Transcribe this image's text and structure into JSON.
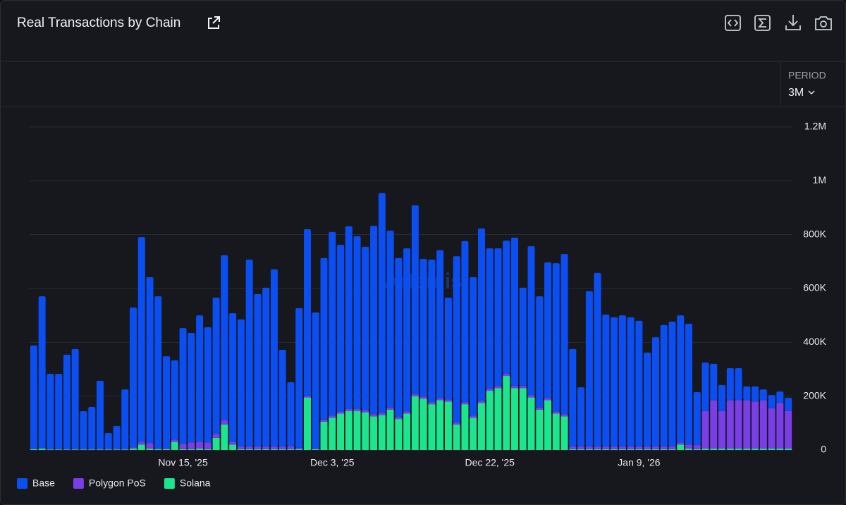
{
  "period_label": "PERIOD",
  "period": "3M",
  "chart_data": {
    "type": "bar",
    "stacked": true,
    "title": "Real Transactions by Chain",
    "watermark": "Artemis",
    "categories": [
      null,
      null,
      null,
      null,
      null,
      null,
      null,
      null,
      null,
      null,
      null,
      null,
      null,
      null,
      null,
      null,
      null,
      null,
      "Nov 15, '25",
      null,
      null,
      null,
      null,
      null,
      null,
      null,
      null,
      null,
      null,
      null,
      null,
      null,
      null,
      null,
      null,
      null,
      "Dec 3, '25",
      null,
      null,
      null,
      null,
      null,
      null,
      null,
      null,
      null,
      null,
      null,
      null,
      null,
      null,
      null,
      null,
      null,
      null,
      "Dec 22, '25",
      null,
      null,
      null,
      null,
      null,
      null,
      null,
      null,
      null,
      null,
      null,
      null,
      null,
      null,
      null,
      null,
      null,
      "Jan 9, '26",
      null,
      null,
      null,
      null,
      null,
      null,
      null,
      null,
      null,
      null,
      null,
      null,
      null,
      null,
      null,
      null,
      null,
      null
    ],
    "series": [
      {
        "name": "Base",
        "color": "#0b4ff2",
        "values": [
          382000,
          564000,
          279000,
          279000,
          350000,
          371000,
          140000,
          156000,
          253000,
          59000,
          85000,
          221000,
          519000,
          761000,
          617000,
          565000,
          342000,
          295000,
          430000,
          407000,
          470000,
          428000,
          506000,
          613000,
          478000,
          472000,
          694000,
          566000,
          590000,
          658000,
          359000,
          239000,
          519000,
          620000,
          505000,
          600000,
          682000,
          619000,
          678000,
          641000,
          607000,
          700000,
          816000,
          657000,
          590000,
          606000,
          701000,
          512000,
          529000,
          549000,
          378000,
          617000,
          598000,
          514000,
          640000,
          521000,
          511000,
          495000,
          551000,
          365000,
          554000,
          413000,
          504000,
          551000,
          595000,
          362000,
          220000,
          577000,
          645000,
          490000,
          480000,
          487000,
          480000,
          467000,
          349000,
          406000,
          451000,
          464000,
          472000,
          449000,
          197000,
          180000,
          135000,
          96000,
          119000,
          119000,
          51000,
          56000,
          40000,
          49000,
          42000,
          49000
        ]
      },
      {
        "name": "Polygon PoS",
        "color": "#7a3ee6",
        "values": [
          3000,
          2000,
          2000,
          2000,
          2000,
          2000,
          2000,
          2000,
          2000,
          2000,
          2000,
          2000,
          5000,
          10000,
          20000,
          3000,
          3000,
          8000,
          20000,
          25000,
          25000,
          25000,
          15000,
          15000,
          10000,
          10000,
          10000,
          10000,
          10000,
          10000,
          10000,
          10000,
          5000,
          5000,
          3000,
          8000,
          8000,
          8000,
          8000,
          8000,
          8000,
          8000,
          8000,
          8000,
          8000,
          8000,
          8000,
          8000,
          8000,
          8000,
          8000,
          8000,
          8000,
          8000,
          8000,
          8000,
          8000,
          8000,
          8000,
          8000,
          8000,
          8000,
          8000,
          8000,
          8000,
          10000,
          10000,
          10000,
          10000,
          10000,
          10000,
          10000,
          10000,
          10000,
          10000,
          10000,
          10000,
          10000,
          8000,
          15000,
          15000,
          140000,
          180000,
          140000,
          180000,
          180000,
          180000,
          175000,
          180000,
          150000,
          170000,
          140000
        ]
      },
      {
        "name": "Solana",
        "color": "#1be58d",
        "values": [
          3000,
          5000,
          2000,
          2000,
          2000,
          2000,
          2000,
          2000,
          2000,
          2000,
          2000,
          2000,
          5000,
          20000,
          5000,
          3000,
          3000,
          30000,
          3000,
          3000,
          5000,
          3000,
          45000,
          95000,
          20000,
          3000,
          3000,
          3000,
          3000,
          3000,
          3000,
          3000,
          3000,
          195000,
          3000,
          105000,
          120000,
          135000,
          145000,
          145000,
          140000,
          125000,
          130000,
          150000,
          115000,
          135000,
          200000,
          190000,
          170000,
          185000,
          180000,
          95000,
          170000,
          120000,
          175000,
          220000,
          230000,
          275000,
          230000,
          230000,
          195000,
          150000,
          185000,
          135000,
          125000,
          3000,
          3000,
          3000,
          3000,
          3000,
          3000,
          3000,
          3000,
          3000,
          3000,
          3000,
          3000,
          3000,
          20000,
          5000,
          3000,
          5000,
          5000,
          5000,
          5000,
          5000,
          5000,
          5000,
          5000,
          5000,
          5000,
          5000
        ]
      }
    ],
    "ylim": [
      0,
      1200000
    ],
    "yticks": [
      0,
      {
        "value": 200000,
        "label": "200K"
      },
      {
        "value": 400000,
        "label": "400K"
      },
      {
        "value": 600000,
        "label": "600K"
      },
      {
        "value": 800000,
        "label": "800K"
      },
      {
        "value": 1000000,
        "label": "1M"
      },
      {
        "value": 1200000,
        "label": "1.2M"
      }
    ],
    "grid": true,
    "legend": "bottom-left"
  }
}
